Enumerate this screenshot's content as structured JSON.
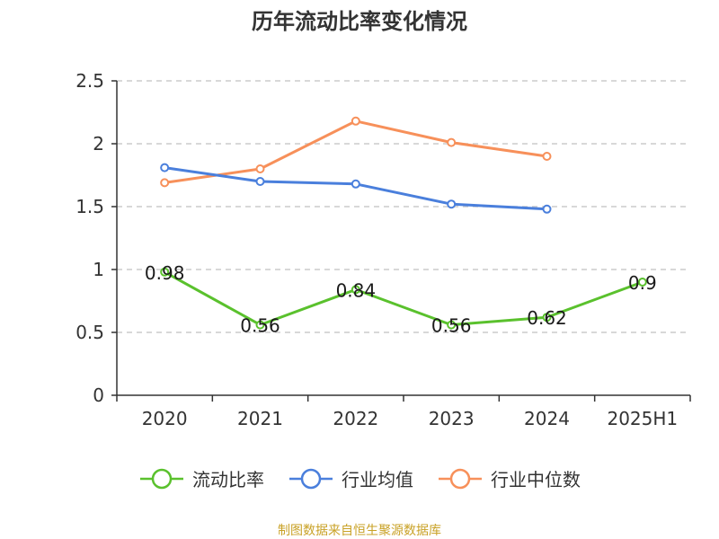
{
  "chart_data": {
    "type": "line",
    "title": "历年流动比率变化情况",
    "categories": [
      "2020",
      "2021",
      "2022",
      "2023",
      "2024",
      "2025H1"
    ],
    "ylim": [
      0,
      2.5
    ],
    "yticks": [
      "0",
      "0.5",
      "1",
      "1.5",
      "2",
      "2.5"
    ],
    "grid": true,
    "legend_position": "bottom",
    "series": [
      {
        "name": "流动比率",
        "color": "#5ac12d",
        "values": [
          0.98,
          0.56,
          0.84,
          0.56,
          0.62,
          0.9
        ],
        "labels": [
          "0.98",
          "0.56",
          "0.84",
          "0.56",
          "0.62",
          "0.9"
        ]
      },
      {
        "name": "行业均值",
        "color": "#4a7fdc",
        "values": [
          1.81,
          1.7,
          1.68,
          1.52,
          1.48,
          null
        ]
      },
      {
        "name": "行业中位数",
        "color": "#f7905a",
        "values": [
          1.69,
          1.8,
          2.18,
          2.01,
          1.9,
          null
        ]
      }
    ]
  },
  "source_note": "制图数据来自恒生聚源数据库",
  "source_color": "#c9a227"
}
